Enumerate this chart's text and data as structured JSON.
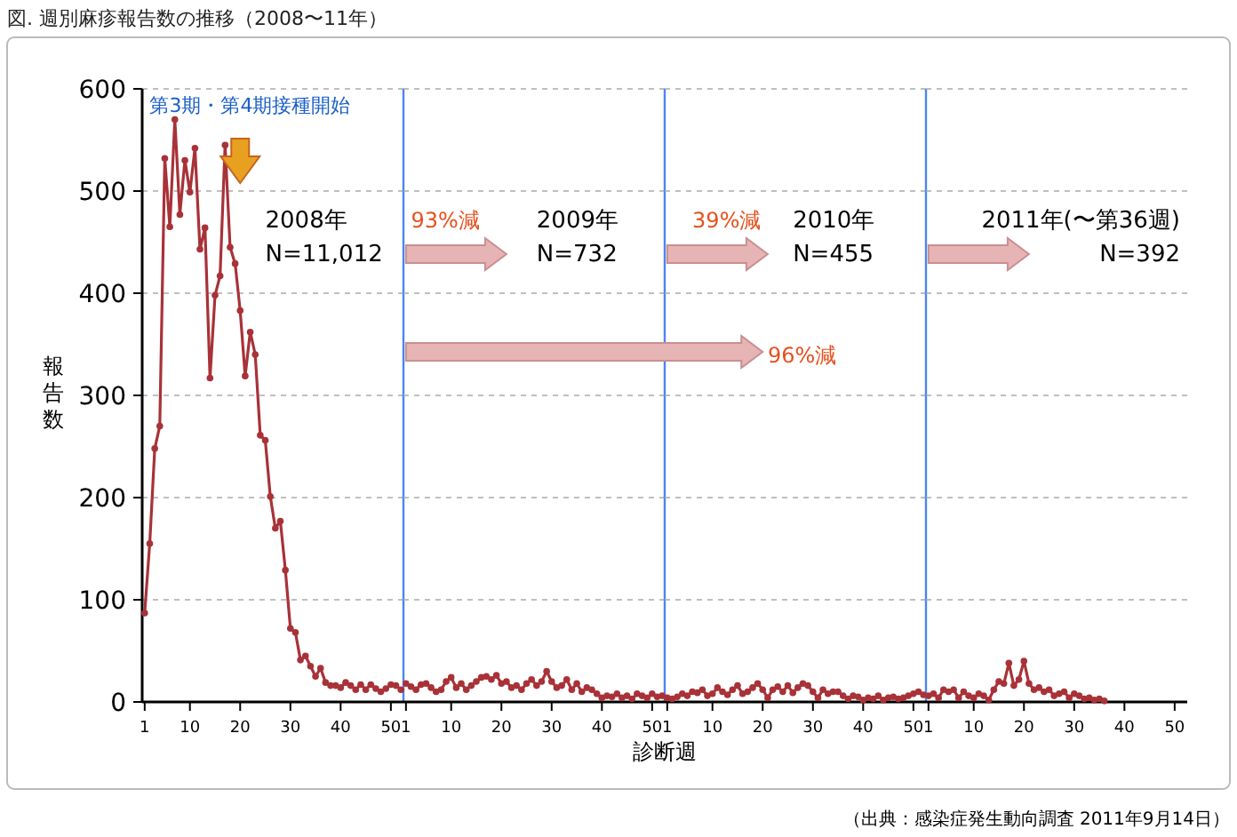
{
  "chart_data": [
    {
      "type": "line",
      "title": "図. 週別麻疹報告数の推移（2008〜11年）",
      "ylabel": "報告数",
      "annotations": [
        "第3期・第4期接種開始",
        "2008年\nN=11,012"
      ],
      "x": [
        1,
        2,
        3,
        4,
        5,
        6,
        7,
        8,
        9,
        10,
        11,
        12,
        13,
        14,
        15,
        16,
        17,
        18,
        19,
        20,
        21,
        22,
        23,
        24,
        25,
        26,
        27,
        28,
        29,
        30,
        31,
        32,
        33,
        34,
        35,
        36,
        37,
        38,
        39,
        40,
        41,
        42,
        43,
        44,
        45,
        46,
        47,
        48,
        49,
        50,
        51,
        52
      ],
      "series": [
        {
          "color": "#a83238",
          "values": [
            87,
            155,
            248,
            270,
            532,
            465,
            570,
            477,
            530,
            499,
            542,
            443,
            464,
            317,
            398,
            417,
            545,
            445,
            429,
            383,
            319,
            362,
            340,
            261,
            256,
            201,
            170,
            177,
            129,
            72,
            68,
            41,
            45,
            35,
            25,
            33,
            19,
            16,
            16,
            14,
            19,
            16,
            12,
            17,
            12,
            17,
            13,
            10,
            13,
            17,
            16,
            12
          ]
        }
      ],
      "xlim": [
        0.5,
        52.5
      ],
      "ylim": [
        0,
        600
      ],
      "yticks": [
        0,
        100,
        200,
        300,
        400,
        500,
        600
      ],
      "xticks": [
        1,
        10,
        20,
        30,
        40,
        50
      ],
      "ref_lines": [
        {
          "axis": "x",
          "value": 52.5,
          "color": "#4a86f0"
        }
      ],
      "grid": "y",
      "marker": "circle",
      "line_style": "solid"
    },
    {
      "type": "line",
      "xlabel": "診断週",
      "annotations": [
        "93%減",
        "2009年\nN=732",
        "96%減"
      ],
      "x": [
        1,
        2,
        3,
        4,
        5,
        6,
        7,
        8,
        9,
        10,
        11,
        12,
        13,
        14,
        15,
        16,
        17,
        18,
        19,
        20,
        21,
        22,
        23,
        24,
        25,
        26,
        27,
        28,
        29,
        30,
        31,
        32,
        33,
        34,
        35,
        36,
        37,
        38,
        39,
        40,
        41,
        42,
        43,
        44,
        45,
        46,
        47,
        48,
        49,
        50,
        51,
        52
      ],
      "series": [
        {
          "color": "#a83238",
          "values": [
            18,
            15,
            12,
            17,
            18,
            14,
            10,
            12,
            20,
            24,
            14,
            18,
            12,
            16,
            20,
            24,
            25,
            22,
            26,
            18,
            20,
            14,
            16,
            12,
            18,
            22,
            16,
            20,
            30,
            20,
            14,
            16,
            22,
            12,
            18,
            10,
            14,
            12,
            8,
            4,
            6,
            5,
            8,
            4,
            6,
            3,
            8,
            6,
            4,
            8,
            5,
            6
          ]
        }
      ],
      "xlim": [
        0.5,
        52.5
      ],
      "ylim": [
        0,
        600
      ],
      "xticks": [
        1,
        10,
        20,
        30,
        40,
        50
      ],
      "tick_labels": "x",
      "ref_lines": [
        {
          "axis": "x",
          "value": 52.5,
          "color": "#4a86f0"
        }
      ],
      "grid": "y",
      "marker": "circle",
      "line_style": "solid"
    },
    {
      "type": "line",
      "annotations": [
        "39%減",
        "2010年\nN=455"
      ],
      "x": [
        1,
        2,
        3,
        4,
        5,
        6,
        7,
        8,
        9,
        10,
        11,
        12,
        13,
        14,
        15,
        16,
        17,
        18,
        19,
        20,
        21,
        22,
        23,
        24,
        25,
        26,
        27,
        28,
        29,
        30,
        31,
        32,
        33,
        34,
        35,
        36,
        37,
        38,
        39,
        40,
        41,
        42,
        43,
        44,
        45,
        46,
        47,
        48,
        49,
        50,
        51,
        52
      ],
      "series": [
        {
          "color": "#a83238",
          "values": [
            4,
            3,
            5,
            8,
            6,
            10,
            9,
            12,
            6,
            8,
            14,
            10,
            7,
            12,
            16,
            8,
            10,
            14,
            18,
            12,
            4,
            12,
            15,
            10,
            16,
            9,
            14,
            18,
            16,
            10,
            4,
            12,
            8,
            10,
            10,
            6,
            3,
            6,
            5,
            2,
            4,
            3,
            6,
            2,
            4,
            5,
            3,
            4,
            6,
            8,
            10,
            7
          ]
        }
      ],
      "xlim": [
        0.5,
        52.5
      ],
      "ylim": [
        0,
        600
      ],
      "xticks": [
        1,
        10,
        20,
        30,
        40,
        50
      ],
      "tick_labels": "x",
      "ref_lines": [
        {
          "axis": "x",
          "value": 52.5,
          "color": "#4a86f0"
        }
      ],
      "grid": "y",
      "marker": "circle",
      "line_style": "solid"
    },
    {
      "type": "line",
      "annotations": [
        "2011年(〜第36週)\nN=392",
        "（出典：感染症発生動向調査 2011年9月14日）"
      ],
      "x": [
        1,
        2,
        3,
        4,
        5,
        6,
        7,
        8,
        9,
        10,
        11,
        12,
        13,
        14,
        15,
        16,
        17,
        18,
        19,
        20,
        21,
        22,
        23,
        24,
        25,
        26,
        27,
        28,
        29,
        30,
        31,
        32,
        33,
        34,
        35,
        36
      ],
      "series": [
        {
          "color": "#a83238",
          "values": [
            6,
            8,
            4,
            12,
            10,
            12,
            4,
            10,
            6,
            4,
            8,
            6,
            2,
            12,
            20,
            18,
            38,
            16,
            22,
            40,
            18,
            12,
            14,
            10,
            12,
            6,
            8,
            10,
            4,
            8,
            6,
            3,
            4,
            2,
            3,
            1
          ]
        }
      ],
      "xlim": [
        0.5,
        52.5
      ],
      "ylim": [
        0,
        600
      ],
      "xticks": [
        1,
        10,
        20,
        30,
        40,
        50
      ],
      "tick_labels": "x",
      "grid": "y",
      "marker": "circle",
      "line_style": "solid"
    }
  ]
}
